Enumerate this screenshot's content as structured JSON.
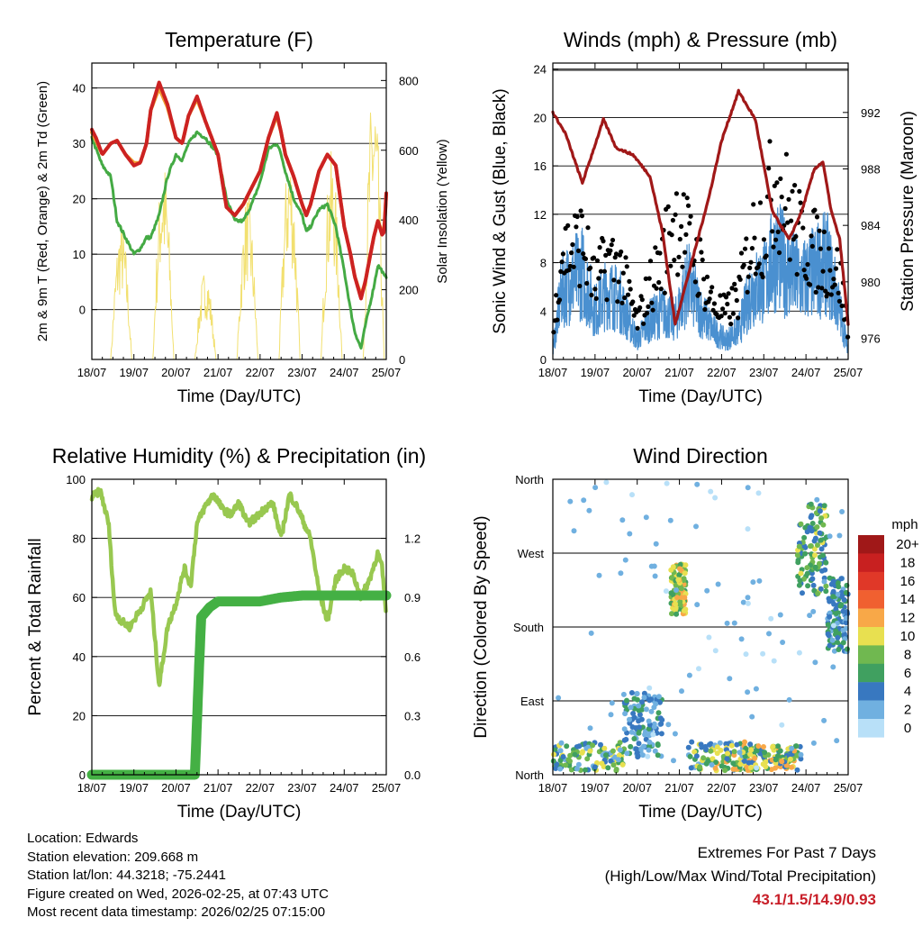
{
  "colors": {
    "t2m": "#cc2222",
    "t9m": "#f0a030",
    "td": "#44aa44",
    "solar": "#f2e070",
    "wind": "#4a90d0",
    "gust": "#000000",
    "pressure": "#a01818",
    "rh": "#98c850",
    "precip": "#44b044"
  },
  "x_ticks": [
    "18/07",
    "19/07",
    "20/07",
    "21/07",
    "22/07",
    "23/07",
    "24/07",
    "25/07"
  ],
  "chart_data": [
    {
      "id": "temperature",
      "type": "line",
      "title": "Temperature (F)",
      "xlabel": "Time (Day/UTC)",
      "ylabel": "2m & 9m T (Red, Orange) & 2m Td (Green)",
      "y2label": "Solar Insolation (Yellow)",
      "ylim": [
        -9,
        44.5
      ],
      "y_ticks": [
        0,
        10,
        20,
        30,
        40
      ],
      "y2lim": [
        0,
        850
      ],
      "y2_ticks": [
        0,
        200,
        400,
        600,
        800
      ],
      "x": [
        0,
        0.1,
        0.25,
        0.45,
        0.6,
        0.8,
        1.0,
        1.15,
        1.3,
        1.4,
        1.6,
        1.8,
        2.0,
        2.15,
        2.3,
        2.5,
        2.7,
        3.0,
        3.2,
        3.4,
        3.6,
        3.8,
        4.0,
        4.2,
        4.4,
        4.5,
        4.6,
        4.8,
        5.0,
        5.1,
        5.2,
        5.4,
        5.6,
        5.8,
        6.0,
        6.15,
        6.25,
        6.4,
        6.5,
        6.7,
        6.8,
        6.9,
        6.95,
        7.0
      ],
      "series": [
        {
          "name": "2m T",
          "values": [
            32.5,
            31,
            28,
            30,
            30.5,
            28,
            26,
            26.5,
            30,
            36,
            41,
            37,
            31,
            30,
            35,
            38.5,
            34,
            28,
            18.5,
            17,
            19,
            22,
            25,
            31,
            35.5,
            32,
            28,
            24,
            19,
            17,
            19,
            25,
            28,
            26,
            15,
            10,
            6,
            2,
            5,
            13,
            16,
            13.5,
            14,
            21
          ]
        },
        {
          "name": "9m T",
          "values": [
            32,
            30.5,
            28,
            30,
            30.5,
            28,
            26.5,
            26.5,
            30,
            36,
            40,
            36.5,
            31,
            30,
            35,
            38,
            34,
            28,
            18.5,
            17,
            19,
            22,
            25,
            31,
            35,
            32,
            28,
            24,
            19,
            17,
            19,
            25,
            28,
            26,
            15,
            10,
            6,
            2.5,
            5,
            13,
            16,
            14,
            14.5,
            21
          ]
        },
        {
          "name": "2m Td",
          "values": [
            31,
            29,
            26,
            24,
            16,
            13,
            10,
            11,
            13,
            13,
            17,
            24,
            28,
            27,
            30,
            32,
            31,
            28,
            20,
            16,
            16,
            19,
            23,
            29,
            30,
            28,
            25,
            20,
            17,
            14,
            15,
            18,
            19,
            15,
            7,
            0,
            -4,
            -7,
            -3,
            4,
            8,
            7,
            6,
            6
          ]
        }
      ],
      "solar": {
        "name": "Solar Insolation",
        "days": [
          0,
          1,
          2,
          3,
          4,
          5,
          6
        ],
        "peaks": [
          400,
          580,
          260,
          480,
          610,
          600,
          810
        ]
      }
    },
    {
      "id": "winds",
      "type": "line",
      "title": "Winds (mph) & Pressure (mb)",
      "xlabel": "Time (Day/UTC)",
      "ylabel": "Sonic Wind & Gust (Blue, Black)",
      "y2label": "Station Pressure (Maroon)",
      "ylim": [
        0,
        24.5
      ],
      "y_ticks": [
        0,
        4,
        8,
        12,
        16,
        20,
        24
      ],
      "y2lim": [
        974.5,
        995.5
      ],
      "y2_ticks": [
        976,
        980,
        984,
        988,
        992
      ],
      "wind_speed": {
        "x": [
          0,
          0.2,
          0.4,
          0.7,
          1,
          1.3,
          1.6,
          2,
          2.3,
          2.6,
          2.9,
          3.2,
          3.5,
          3.8,
          4.1,
          4.4,
          4.7,
          5,
          5.3,
          5.6,
          5.9,
          6.2,
          6.5,
          6.8,
          7
        ],
        "values": [
          1,
          7,
          8,
          9,
          5,
          7,
          6,
          2,
          4,
          5,
          4,
          8,
          5,
          3,
          2,
          3,
          7,
          8,
          11,
          9,
          8,
          9,
          10,
          5,
          1
        ],
        "gust_values": [
          2,
          12,
          12,
          13,
          8,
          11,
          10,
          4,
          8,
          11,
          16,
          13,
          10,
          6,
          5,
          7,
          13,
          15,
          20,
          16,
          13,
          12,
          11,
          9,
          3
        ]
      },
      "pressure": {
        "name": "Station Pressure",
        "x": [
          0,
          0.3,
          0.7,
          1.2,
          1.5,
          1.9,
          2.3,
          2.6,
          2.9,
          3.3,
          3.7,
          4.0,
          4.4,
          4.8,
          5.2,
          5.6,
          5.9,
          6.2,
          6.4,
          6.6,
          6.8,
          7.0
        ],
        "values": [
          992,
          990.5,
          987,
          991.5,
          989.5,
          989,
          987.5,
          983.5,
          977,
          981.5,
          986,
          990,
          993.5,
          991.5,
          985,
          983,
          985,
          988,
          988.5,
          985,
          983,
          977
        ]
      }
    },
    {
      "id": "humidity",
      "type": "line",
      "title": "Relative Humidity (%) & Precipitation (in)",
      "xlabel": "Time (Day/UTC)",
      "ylabel": "Percent & Total Rainfall",
      "ylim": [
        0,
        100
      ],
      "y_ticks": [
        0,
        20,
        40,
        60,
        80,
        100
      ],
      "y2lim": [
        0,
        1.5
      ],
      "y2_ticks": [
        "0.0",
        "0.3",
        "0.6",
        "0.9",
        "1.2"
      ],
      "series": [
        {
          "name": "Relative Humidity",
          "x": [
            0,
            0.2,
            0.4,
            0.55,
            0.7,
            0.9,
            1.2,
            1.4,
            1.6,
            1.8,
            2.0,
            2.2,
            2.35,
            2.5,
            2.7,
            2.9,
            3.1,
            3.3,
            3.5,
            3.7,
            3.9,
            4.1,
            4.3,
            4.5,
            4.7,
            4.9,
            5.2,
            5.4,
            5.6,
            5.8,
            6.0,
            6.2,
            6.4,
            6.6,
            6.8,
            6.9,
            7.0
          ],
          "values": [
            94,
            96,
            85,
            55,
            52,
            50,
            57,
            62,
            30,
            50,
            58,
            70,
            64,
            85,
            91,
            95,
            90,
            88,
            92,
            85,
            87,
            90,
            92,
            80,
            95,
            90,
            80,
            62,
            52,
            66,
            70,
            68,
            60,
            66,
            75,
            70,
            55
          ]
        },
        {
          "name": "Total Rainfall",
          "x": [
            0,
            1,
            2,
            2.45,
            2.55,
            2.6,
            2.8,
            3,
            3.5,
            4,
            4.5,
            5,
            5.5,
            6,
            6.5,
            7
          ],
          "values": [
            0,
            0,
            0,
            0,
            0.55,
            0.8,
            0.85,
            0.88,
            0.88,
            0.88,
            0.9,
            0.91,
            0.91,
            0.91,
            0.91,
            0.91
          ]
        }
      ]
    },
    {
      "id": "direction",
      "type": "scatter",
      "title": "Wind Direction",
      "xlabel": "Time (Day/UTC)",
      "ylabel": "Direction (Colored By Speed)",
      "ylim": [
        0,
        360
      ],
      "y_ticks": [
        "North",
        "East",
        "South",
        "West",
        "North"
      ],
      "colorbar": {
        "title": "mph",
        "labels": [
          "20+",
          "18",
          "16",
          "14",
          "12",
          "10",
          "8",
          "6",
          "4",
          "2",
          "0"
        ],
        "colors": [
          "#a01818",
          "#c82020",
          "#e03828",
          "#f06030",
          "#f8a848",
          "#e8e050",
          "#70b850",
          "#40a060",
          "#3878c0",
          "#70b0e0",
          "#b8e0f8"
        ]
      },
      "clusters": [
        {
          "x0": 0,
          "x1": 1.7,
          "d0": 5,
          "d1": 40,
          "s0": 2,
          "s1": 11
        },
        {
          "x0": 1.7,
          "x1": 2.6,
          "d0": 20,
          "d1": 100,
          "s0": 1,
          "s1": 6
        },
        {
          "x0": 2.8,
          "x1": 3.15,
          "d0": 195,
          "d1": 260,
          "s0": 6,
          "s1": 12
        },
        {
          "x0": 3.2,
          "x1": 4.8,
          "d0": 5,
          "d1": 40,
          "s0": 2,
          "s1": 12
        },
        {
          "x0": 4.5,
          "x1": 5.9,
          "d0": 5,
          "d1": 35,
          "s0": 3,
          "s1": 13
        },
        {
          "x0": 5.8,
          "x1": 6.5,
          "d0": 220,
          "d1": 330,
          "s0": 3,
          "s1": 10
        },
        {
          "x0": 6.5,
          "x1": 7.0,
          "d0": 150,
          "d1": 240,
          "s0": 2,
          "s1": 7
        },
        {
          "x0": 0,
          "x1": 7,
          "d0": 0,
          "d1": 360,
          "s0": 0,
          "s1": 3
        }
      ]
    }
  ],
  "info": {
    "location": "Location: Edwards",
    "elevation": "Station elevation: 209.668 m",
    "latlon": "Station lat/lon: 44.3218; -75.2441",
    "created": "Figure created on Wed, 2026-02-25, at 07:43 UTC",
    "recent": "Most recent data timestamp: 2026/02/25 07:15:00"
  },
  "extremes": {
    "heading": "Extremes For Past 7 Days",
    "subheading": "(High/Low/Max Wind/Total Precipitation)",
    "values": "43.1/1.5/14.9/0.93"
  }
}
